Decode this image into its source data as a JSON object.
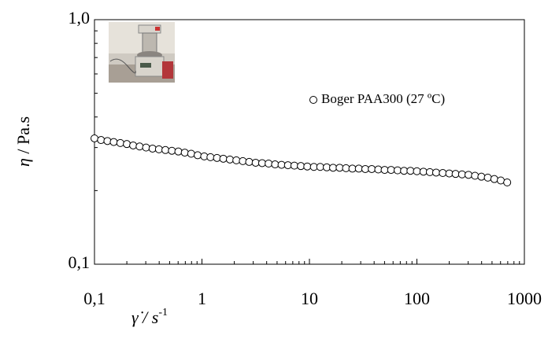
{
  "chart_data": {
    "type": "scatter",
    "xlabel": "γ̇ / s",
    "xlabel_sup": "-1",
    "ylabel_symbol": "η",
    "ylabel": " / Pa.s",
    "xscale": "log",
    "yscale": "log",
    "xlim": [
      0.1,
      1000
    ],
    "ylim": [
      0.1,
      1.0
    ],
    "xticks": [
      {
        "value": 0.1,
        "label": "0,1"
      },
      1,
      10,
      100,
      1000
    ],
    "yticks": [
      {
        "value": 0.1,
        "label": "0,1"
      },
      {
        "value": 1.0,
        "label": "1,0"
      }
    ],
    "xminor": [
      0.2,
      0.3,
      0.4,
      0.5,
      0.6,
      0.7,
      0.8,
      0.9,
      2,
      3,
      4,
      5,
      6,
      7,
      8,
      9,
      20,
      30,
      40,
      50,
      60,
      70,
      80,
      90,
      200,
      300,
      400,
      500,
      600,
      700,
      800,
      900
    ],
    "yminor": [
      0.2,
      0.3,
      0.4,
      0.5,
      0.6,
      0.7,
      0.8,
      0.9
    ],
    "legend": "upper-right",
    "series": [
      {
        "name": "Boger PAA300 (27 ºC)",
        "color": "#000000",
        "x": [
          0.1,
          0.115,
          0.132,
          0.151,
          0.174,
          0.2,
          0.229,
          0.263,
          0.302,
          0.347,
          0.398,
          0.457,
          0.525,
          0.603,
          0.692,
          0.794,
          0.912,
          1.05,
          1.2,
          1.38,
          1.58,
          1.82,
          2.09,
          2.4,
          2.75,
          3.16,
          3.63,
          4.17,
          4.79,
          5.5,
          6.31,
          7.24,
          8.32,
          9.55,
          11,
          12.6,
          14.5,
          16.6,
          19.1,
          21.9,
          25.1,
          28.8,
          33.1,
          38,
          43.7,
          50.1,
          57.5,
          66.1,
          75.9,
          87.1,
          100,
          115,
          132,
          151,
          174,
          200,
          229,
          263,
          302,
          347,
          398,
          457,
          525,
          603,
          692
        ],
        "values": [
          0.327,
          0.322,
          0.319,
          0.316,
          0.313,
          0.31,
          0.306,
          0.303,
          0.3,
          0.297,
          0.295,
          0.293,
          0.291,
          0.289,
          0.286,
          0.283,
          0.279,
          0.276,
          0.274,
          0.272,
          0.27,
          0.268,
          0.266,
          0.264,
          0.262,
          0.26,
          0.259,
          0.258,
          0.256,
          0.255,
          0.254,
          0.253,
          0.252,
          0.251,
          0.25,
          0.25,
          0.249,
          0.248,
          0.248,
          0.247,
          0.246,
          0.246,
          0.245,
          0.245,
          0.244,
          0.243,
          0.243,
          0.242,
          0.241,
          0.241,
          0.24,
          0.239,
          0.238,
          0.237,
          0.236,
          0.235,
          0.234,
          0.233,
          0.232,
          0.23,
          0.228,
          0.226,
          0.223,
          0.22,
          0.216
        ]
      }
    ]
  }
}
